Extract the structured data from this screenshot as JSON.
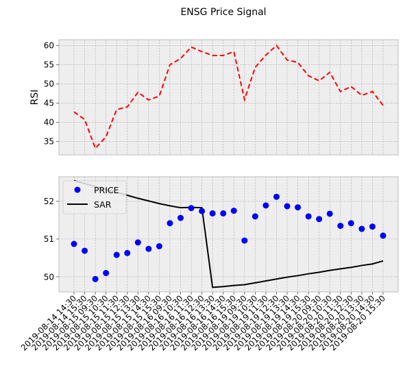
{
  "chart_data": [
    {
      "type": "line",
      "title": "ENSG Price Signal",
      "ylabel": "RSI",
      "ylim": [
        31.5,
        61.5
      ],
      "yticks": [
        35,
        40,
        45,
        50,
        55,
        60
      ],
      "grid": true,
      "series": [
        {
          "values": [
            42.7,
            40.7,
            33.2,
            36.2,
            43.3,
            44.0,
            47.8,
            45.8,
            46.8,
            55.0,
            56.6,
            59.6,
            58.4,
            57.4,
            57.4,
            58.4,
            45.9,
            54.3,
            57.5,
            60.0,
            56.2,
            55.6,
            52.1,
            50.8,
            53.0,
            48.0,
            49.3,
            47.0,
            48.0,
            44.4
          ],
          "color": "#ff0000",
          "style": "dashed"
        }
      ]
    },
    {
      "type": "scatter",
      "ylim": [
        49.6,
        52.65
      ],
      "yticks": [
        50,
        51,
        52
      ],
      "grid": true,
      "legend": "top-left",
      "categories": [
        "2019-08-14 14:30",
        "2019-08-14 15:30",
        "2019-08-15 09:30",
        "2019-08-15 10:30",
        "2019-08-15 11:30",
        "2019-08-15 12:30",
        "2019-08-15 13:30",
        "2019-08-15 14:30",
        "2019-08-15 15:30",
        "2019-08-16 09:30",
        "2019-08-16 10:30",
        "2019-08-16 11:30",
        "2019-08-16 12:30",
        "2019-08-16 13:30",
        "2019-08-16 14:30",
        "2019-08-16 15:30",
        "2019-08-19 09:30",
        "2019-08-19 10:30",
        "2019-08-19 11:30",
        "2019-08-19 12:30",
        "2019-08-19 13:30",
        "2019-08-19 14:30",
        "2019-08-19 15:30",
        "2019-08-20 09:30",
        "2019-08-20 10:30",
        "2019-08-20 11:30",
        "2019-08-20 12:30",
        "2019-08-20 13:30",
        "2019-08-20 14:30",
        "2019-08-20 15:30"
      ],
      "series": [
        {
          "name": "PRICE",
          "type": "scatter",
          "color": "#0000ff",
          "values": [
            50.87,
            50.69,
            49.94,
            50.1,
            50.58,
            50.63,
            50.91,
            50.74,
            50.81,
            51.42,
            51.56,
            51.82,
            51.74,
            51.68,
            51.68,
            51.75,
            50.96,
            51.6,
            51.89,
            52.12,
            51.87,
            51.84,
            51.6,
            51.53,
            51.67,
            51.35,
            51.42,
            51.27,
            51.33,
            51.09
          ]
        },
        {
          "name": "SAR",
          "type": "line",
          "color": "#000000",
          "values": [
            52.55,
            52.47,
            52.39,
            52.31,
            52.24,
            52.16,
            52.08,
            52.01,
            51.94,
            51.88,
            51.83,
            51.84,
            51.83,
            49.72,
            49.74,
            49.77,
            49.79,
            49.84,
            49.89,
            49.94,
            49.99,
            50.03,
            50.08,
            50.12,
            50.17,
            50.21,
            50.25,
            50.3,
            50.34,
            50.42
          ]
        }
      ]
    }
  ]
}
